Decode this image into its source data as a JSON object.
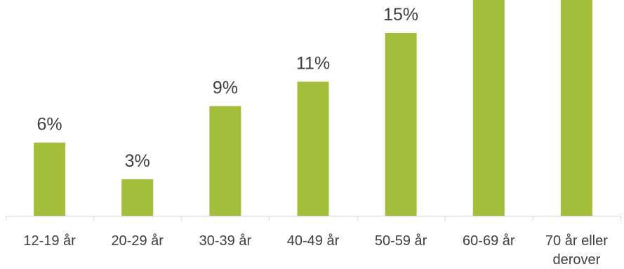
{
  "chart_data": {
    "type": "bar",
    "categories": [
      "12-19 år",
      "20-29 år",
      "30-39 år",
      "40-49 år",
      "50-59 år",
      "60-69 år",
      "70 år eller derover"
    ],
    "category_label_lines": [
      [
        "12-19 år"
      ],
      [
        "20-29 år"
      ],
      [
        "30-39 år"
      ],
      [
        "40-49 år"
      ],
      [
        "50-59 år"
      ],
      [
        "60-69 år"
      ],
      [
        "70 år eller",
        "derover"
      ]
    ],
    "values": [
      6,
      3,
      9,
      11,
      15,
      20,
      20
    ],
    "value_labels": [
      "6%",
      "3%",
      "9%",
      "11%",
      "15%",
      "",
      ""
    ],
    "unit": "%",
    "title": "",
    "xlabel": "",
    "ylabel": "",
    "grid": false,
    "legend": "none",
    "colors": {
      "bar": "#a2be3b",
      "text": "#3f3f3f",
      "axis": "#d9d9d9"
    }
  }
}
